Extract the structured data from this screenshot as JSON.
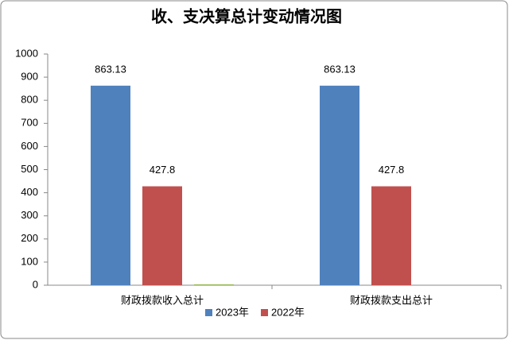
{
  "chart_data": {
    "type": "bar",
    "title": "收、支决算总计变动情况图",
    "categories": [
      "财政拨款收入总计",
      "财政拨款支出总计"
    ],
    "series": [
      {
        "name": "2023年",
        "color": "#4f81bd",
        "values": [
          863.13,
          863.13
        ]
      },
      {
        "name": "2022年",
        "color": "#c0504d",
        "values": [
          427.8,
          427.8
        ]
      },
      {
        "color": "#9bbb59",
        "values": [
          4,
          0
        ]
      }
    ],
    "data_labels": [
      true,
      true,
      false
    ],
    "ylim": [
      0,
      1000
    ],
    "yticks": [
      0,
      100,
      200,
      300,
      400,
      500,
      600,
      700,
      800,
      900,
      1000
    ],
    "grid": false,
    "legend": "bottom"
  }
}
